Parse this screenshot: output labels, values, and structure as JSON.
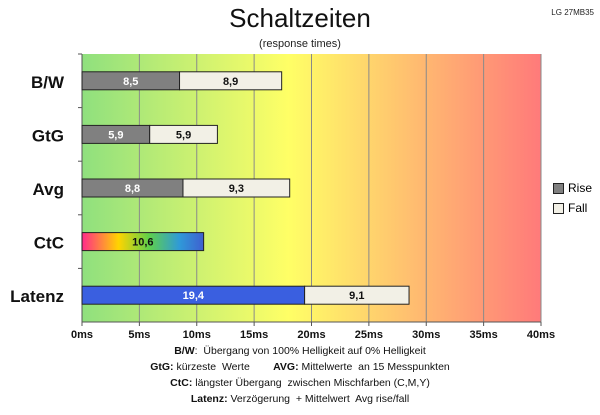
{
  "model": "LG 27MB35",
  "chart_data": {
    "type": "bar",
    "orientation": "horizontal",
    "stacked": true,
    "title": "Schaltzeiten",
    "subtitle": "(response times)",
    "categories": [
      "B/W",
      "GtG",
      "Avg",
      "CtC",
      "Latenz"
    ],
    "series": [
      {
        "name": "Rise",
        "values": [
          8.5,
          5.9,
          8.8,
          null,
          19.4
        ],
        "color": "#808080"
      },
      {
        "name": "Fall",
        "values": [
          8.9,
          5.9,
          9.3,
          null,
          9.1
        ],
        "color": "#f2f0e6"
      }
    ],
    "single_values": {
      "CtC": 10.6
    },
    "special_colors": {
      "CtC": "rainbow",
      "Latenz_rise": "#3a5fe0"
    },
    "xlim": [
      0,
      40
    ],
    "xticks": [
      "0ms",
      "5ms",
      "10ms",
      "15ms",
      "20ms",
      "25ms",
      "30ms",
      "35ms",
      "40ms"
    ],
    "background_gradient": [
      "#8fe07e",
      "#ffff66",
      "#ff7a7a"
    ],
    "grid": true,
    "legend": "right"
  },
  "notes": [
    {
      "bold": "B/W",
      "text": ":  Übergang von 100% Helligkeit auf 0% Helligkeit"
    },
    {
      "bold": "GtG:",
      "text": " kürzeste  Werte        ",
      "bold2": "AVG:",
      "text2": " Mittelwerte  an 15 Messpunkten"
    },
    {
      "bold": "CtC:",
      "text": " längster Übergang  zwischen Mischfarben (C,M,Y)"
    },
    {
      "bold": "Latenz:",
      "text": " Verzögerung  + Mittelwert  Avg rise/fall"
    }
  ]
}
